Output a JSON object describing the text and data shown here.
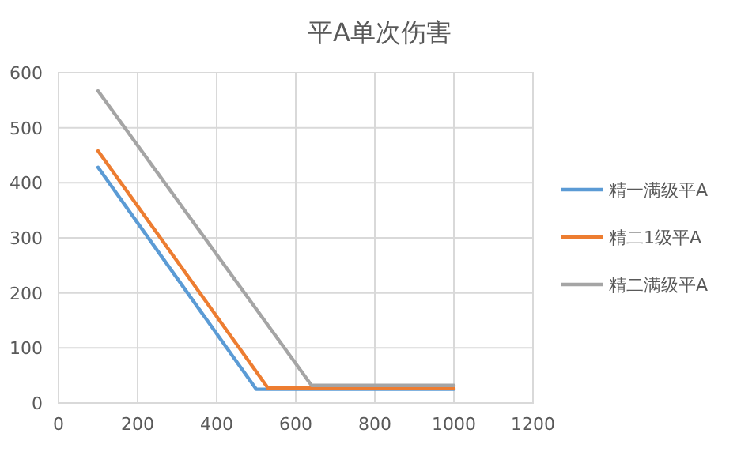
{
  "chart_data": {
    "type": "line",
    "title": "平A单次伤害",
    "xlim": [
      0,
      1200
    ],
    "xticks": [
      0,
      200,
      400,
      600,
      800,
      1000,
      1200
    ],
    "ylim": [
      0,
      600
    ],
    "yticks": [
      0,
      100,
      200,
      300,
      400,
      500,
      600
    ],
    "grid": true,
    "legend": "right",
    "series": [
      {
        "name": "精一满级平A",
        "color": "#5b9bd5",
        "x": [
          100,
          500,
          1000
        ],
        "values": [
          428,
          25,
          25
        ]
      },
      {
        "name": "精二1级平A",
        "color": "#ed7d31",
        "x": [
          100,
          530,
          1000
        ],
        "values": [
          458,
          27,
          27
        ]
      },
      {
        "name": "精二满级平A",
        "color": "#a5a5a5",
        "x": [
          100,
          640,
          1000
        ],
        "values": [
          567,
          32,
          32
        ]
      }
    ]
  }
}
